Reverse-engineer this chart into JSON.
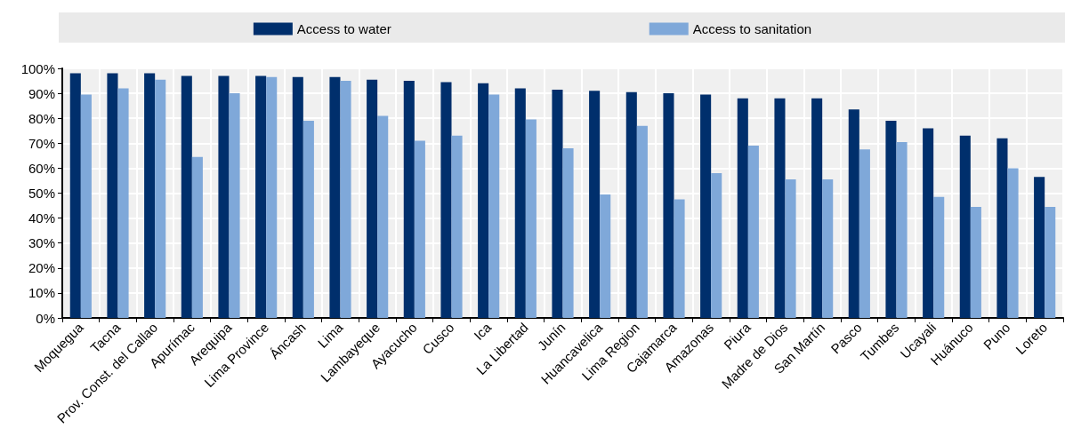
{
  "chart_data": {
    "type": "bar",
    "categories": [
      "Moquegua",
      "Tacna",
      "Prov. Const. del Callao",
      "Apurímac",
      "Arequipa",
      "Lima Province",
      "Áncash",
      "Lima",
      "Lambayeque",
      "Ayacucho",
      "Cusco",
      "Ica",
      "La Libertad",
      "Junín",
      "Huancavelica",
      "Lima Region",
      "Cajamarca",
      "Amazonas",
      "Piura",
      "Madre de Dios",
      "San Martín",
      "Pasco",
      "Tumbes",
      "Ucayali",
      "Huánuco",
      "Puno",
      "Loreto"
    ],
    "series": [
      {
        "name": "Access to water",
        "color": "#002f6c",
        "values": [
          98,
          98,
          98,
          97,
          97,
          97,
          96.5,
          96.5,
          95.5,
          95,
          94.5,
          94,
          92,
          91.5,
          91,
          90.5,
          90,
          89.5,
          88,
          88,
          88,
          83.5,
          79,
          76,
          73,
          72,
          56.5
        ]
      },
      {
        "name": "Access to sanitation",
        "color": "#7fa8d9",
        "values": [
          89.5,
          92,
          95.5,
          64.5,
          90,
          96.5,
          79,
          95,
          81,
          71,
          73,
          89.5,
          79.5,
          68,
          49.5,
          77,
          47.5,
          58,
          69,
          55.5,
          55.5,
          67.5,
          70.5,
          48.5,
          44.5,
          60,
          44.5
        ]
      }
    ],
    "ylim": [
      0,
      100
    ],
    "yticks": [
      {
        "value": 0,
        "label": "0%"
      },
      {
        "value": 10,
        "label": "10%"
      },
      {
        "value": 20,
        "label": "20%"
      },
      {
        "value": 30,
        "label": "30%"
      },
      {
        "value": 40,
        "label": "40%"
      },
      {
        "value": 50,
        "label": "50%"
      },
      {
        "value": 60,
        "label": "60%"
      },
      {
        "value": 70,
        "label": "70%"
      },
      {
        "value": 80,
        "label": "80%"
      },
      {
        "value": 90,
        "label": "90%"
      },
      {
        "value": 100,
        "label": "100%"
      }
    ],
    "grid": true,
    "legend": "top"
  }
}
